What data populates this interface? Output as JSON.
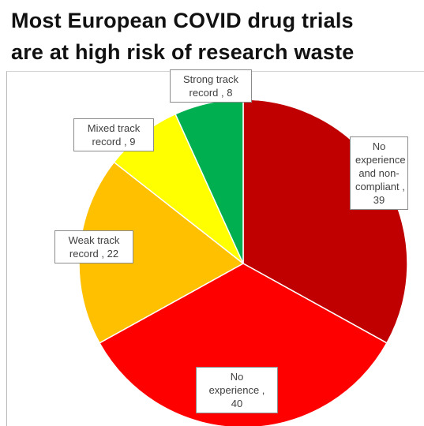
{
  "chart_data": {
    "type": "pie",
    "title": "Most European COVID drug trials are at high risk of research waste",
    "title_lines": [
      "Most European COVID drug trials",
      "are at high risk of research waste"
    ],
    "categories": [
      "No experience and non-compliant",
      "No experience",
      "Weak track record",
      "Mixed track record",
      "Strong track record"
    ],
    "values": [
      39,
      40,
      22,
      9,
      8
    ],
    "colors": [
      "#c00000",
      "#ff0000",
      "#ffc000",
      "#ffff00",
      "#00b050"
    ],
    "start_angle_deg": 0,
    "direction": "clockwise",
    "data_labels": [
      [
        "No",
        "experience",
        "and non-",
        "compliant ,",
        "39"
      ],
      [
        "No",
        "experience ,",
        "40"
      ],
      [
        "Weak track",
        "record , 22"
      ],
      [
        "Mixed track",
        "record , 9"
      ],
      [
        "Strong track",
        "record , 8"
      ]
    ]
  }
}
